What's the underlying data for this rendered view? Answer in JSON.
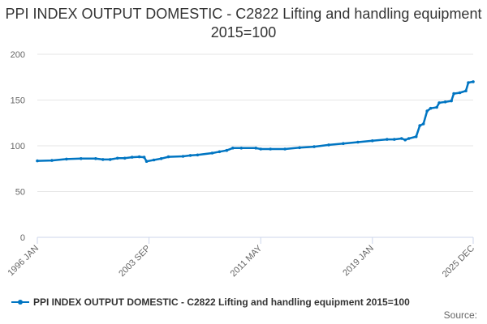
{
  "title": "PPI INDEX OUTPUT DOMESTIC - C2822 Lifting and handling equipment 2015=100",
  "source_label": "Source:",
  "colors": {
    "series": "#0075c2",
    "grid": "#e6e6e6",
    "axis_text": "#666666"
  },
  "chart_data": {
    "type": "line",
    "title": "PPI INDEX OUTPUT DOMESTIC - C2822 Lifting and handling equipment 2015=100",
    "xlabel": "",
    "ylabel": "",
    "ylim": [
      0,
      200
    ],
    "yticks": [
      0,
      50,
      100,
      150,
      200
    ],
    "xlim": [
      "1996-01",
      "2025-12"
    ],
    "xticks": [
      "1996 JAN",
      "2003 SEP",
      "2011 MAY",
      "2019 JAN",
      "2025 DEC"
    ],
    "grid": true,
    "legend": "bottom",
    "series": [
      {
        "name": "PPI INDEX OUTPUT DOMESTIC - C2822 Lifting and handling equipment 2015=100",
        "points": [
          [
            "1996-01",
            83.5
          ],
          [
            "1997-01",
            84.0
          ],
          [
            "1998-01",
            85.5
          ],
          [
            "1999-01",
            86.0
          ],
          [
            "2000-01",
            86.0
          ],
          [
            "2000-07",
            85.0
          ],
          [
            "2001-01",
            85.0
          ],
          [
            "2001-07",
            86.5
          ],
          [
            "2002-01",
            86.5
          ],
          [
            "2002-07",
            87.5
          ],
          [
            "2003-01",
            88.0
          ],
          [
            "2003-05",
            87.5
          ],
          [
            "2003-07",
            83.0
          ],
          [
            "2004-01",
            84.5
          ],
          [
            "2004-07",
            86.0
          ],
          [
            "2005-01",
            88.0
          ],
          [
            "2006-01",
            88.5
          ],
          [
            "2006-07",
            89.5
          ],
          [
            "2007-01",
            90.0
          ],
          [
            "2008-01",
            92.0
          ],
          [
            "2008-07",
            93.5
          ],
          [
            "2009-01",
            95.0
          ],
          [
            "2009-06",
            97.5
          ],
          [
            "2010-01",
            97.5
          ],
          [
            "2011-01",
            97.5
          ],
          [
            "2011-05",
            96.5
          ],
          [
            "2012-01",
            96.5
          ],
          [
            "2013-01",
            96.5
          ],
          [
            "2014-01",
            98.0
          ],
          [
            "2015-01",
            99.0
          ],
          [
            "2016-01",
            101.0
          ],
          [
            "2017-01",
            102.5
          ],
          [
            "2018-01",
            104.0
          ],
          [
            "2019-01",
            105.5
          ],
          [
            "2020-01",
            107.0
          ],
          [
            "2020-07",
            107.0
          ],
          [
            "2021-01",
            108.0
          ],
          [
            "2021-04",
            106.5
          ],
          [
            "2021-07",
            108.0
          ],
          [
            "2022-01",
            110.0
          ],
          [
            "2022-04",
            122.0
          ],
          [
            "2022-07",
            124.0
          ],
          [
            "2022-10",
            138.0
          ],
          [
            "2023-01",
            141.0
          ],
          [
            "2023-06",
            142.0
          ],
          [
            "2023-08",
            147.0
          ],
          [
            "2024-01",
            148.0
          ],
          [
            "2024-06",
            149.0
          ],
          [
            "2024-08",
            157.0
          ],
          [
            "2025-01",
            158.0
          ],
          [
            "2025-06",
            160.0
          ],
          [
            "2025-08",
            169.0
          ],
          [
            "2025-12",
            170.0
          ]
        ]
      }
    ]
  }
}
